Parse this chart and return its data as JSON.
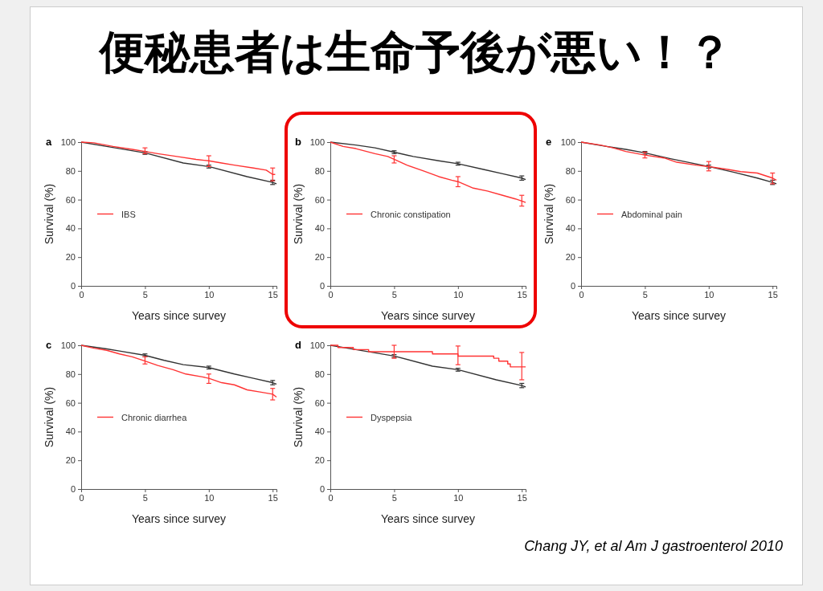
{
  "chart_data": [
    {
      "type": "other",
      "title": "便秘患者は生命予後が悪い！？",
      "annotations": [
        "Chang JY, et al Am J gastroenterol 2010"
      ]
    },
    {
      "type": "line",
      "title": "a",
      "xlabel": "Years since survey",
      "ylabel": "Survival (%)",
      "xlim": [
        0,
        15.3
      ],
      "xticks": [
        0,
        5,
        10,
        15
      ],
      "ylim": [
        0,
        100
      ],
      "yticks": [
        0,
        20,
        40,
        60,
        80,
        100
      ],
      "legend": "left",
      "series": [
        {
          "color": "#333333",
          "x": [
            0,
            2,
            5,
            8,
            10,
            13,
            15,
            15.3
          ],
          "values": [
            100,
            97,
            92.5,
            85.5,
            83,
            76,
            72,
            71
          ],
          "errors": [
            null,
            null,
            [
              91.5,
              93.5
            ],
            null,
            [
              82,
              84
            ],
            null,
            [
              70.5,
              73.5
            ],
            null
          ]
        },
        {
          "name": "IBS",
          "color": "#ff3333",
          "x": [
            0,
            1,
            2.5,
            4,
            5,
            6,
            7.5,
            9,
            10,
            11,
            12,
            13.5,
            14.5,
            15,
            15.2
          ],
          "values": [
            100,
            99.5,
            97,
            95,
            93.5,
            92,
            90,
            88,
            87,
            85.5,
            84,
            82,
            80.5,
            77.5,
            77.5
          ],
          "errors": [
            null,
            null,
            null,
            null,
            [
              92,
              96
            ],
            null,
            null,
            null,
            [
              83,
              90.5
            ],
            null,
            null,
            null,
            null,
            [
              73,
              82
            ],
            null
          ]
        }
      ]
    },
    {
      "type": "line",
      "title": "b",
      "xlabel": "Years since survey",
      "ylabel": "Survival (%)",
      "xlim": [
        0,
        15.3
      ],
      "xticks": [
        0,
        5,
        10,
        15
      ],
      "ylim": [
        0,
        100
      ],
      "yticks": [
        0,
        20,
        40,
        60,
        80,
        100
      ],
      "legend": "left",
      "series": [
        {
          "color": "#333333",
          "x": [
            0,
            2,
            3.5,
            5,
            6.5,
            8.5,
            10,
            12,
            13.5,
            15,
            15.3
          ],
          "values": [
            100,
            98,
            96,
            93,
            90,
            87,
            85,
            81,
            78,
            75,
            74
          ],
          "errors": [
            null,
            null,
            null,
            [
              92,
              94
            ],
            null,
            null,
            [
              84,
              86
            ],
            null,
            null,
            [
              73.5,
              76.5
            ],
            null
          ]
        },
        {
          "name": "Chronic constipation",
          "color": "#ff3333",
          "x": [
            0,
            1,
            2,
            3.5,
            4.5,
            5,
            6,
            7.3,
            8.5,
            9.5,
            10,
            11.2,
            12.3,
            13.5,
            14.5,
            15,
            15.3
          ],
          "values": [
            100,
            97,
            95.5,
            92,
            90,
            88,
            84,
            80,
            76,
            73.5,
            72.5,
            68,
            66,
            63,
            60.5,
            59,
            58
          ],
          "errors": [
            null,
            null,
            null,
            null,
            null,
            [
              85.5,
              90.5
            ],
            null,
            null,
            null,
            null,
            [
              69,
              76
            ],
            null,
            null,
            null,
            null,
            [
              55.5,
              63
            ],
            null
          ]
        }
      ]
    },
    {
      "type": "line",
      "title": "e",
      "xlabel": "Years since survey",
      "ylabel": "Survival (%)",
      "xlim": [
        0,
        15.3
      ],
      "xticks": [
        0,
        5,
        10,
        15
      ],
      "ylim": [
        0,
        100
      ],
      "yticks": [
        0,
        20,
        40,
        60,
        80,
        100
      ],
      "legend": "left",
      "series": [
        {
          "color": "#333333",
          "x": [
            0,
            2,
            3.5,
            5,
            7,
            10,
            12,
            13.8,
            15,
            15.3
          ],
          "values": [
            100,
            97,
            95,
            92.5,
            88.5,
            83,
            79,
            75,
            72,
            71
          ],
          "errors": [
            null,
            null,
            null,
            [
              91.5,
              93.5
            ],
            null,
            [
              82,
              84
            ],
            null,
            null,
            [
              70.5,
              73.5
            ],
            null
          ]
        },
        {
          "name": "Abdominal pain",
          "color": "#ff3333",
          "x": [
            0,
            1.5,
            2.5,
            3.5,
            5,
            6.5,
            7.5,
            9,
            10,
            11.5,
            12.5,
            13.8,
            15,
            15.3
          ],
          "values": [
            100,
            98,
            96,
            93.5,
            91,
            89,
            86,
            84,
            83,
            81,
            79.5,
            78.5,
            75,
            73.5
          ],
          "errors": [
            null,
            null,
            null,
            null,
            [
              89,
              93
            ],
            null,
            null,
            null,
            [
              80,
              86.5
            ],
            null,
            null,
            null,
            [
              71,
              78.5
            ],
            null
          ]
        }
      ]
    },
    {
      "type": "line",
      "title": "c",
      "xlabel": "Years since survey",
      "ylabel": "Survival (%)",
      "xlim": [
        0,
        15.3
      ],
      "xticks": [
        0,
        5,
        10,
        15
      ],
      "ylim": [
        0,
        100
      ],
      "yticks": [
        0,
        20,
        40,
        60,
        80,
        100
      ],
      "legend": "left",
      "series": [
        {
          "color": "#333333",
          "x": [
            0,
            2,
            3,
            5,
            6.5,
            8,
            10,
            12,
            13.5,
            15,
            15.3
          ],
          "values": [
            100,
            97.5,
            96,
            93,
            89.5,
            86.5,
            84.5,
            80,
            77,
            74,
            73
          ],
          "errors": [
            null,
            null,
            null,
            [
              92,
              94
            ],
            null,
            null,
            [
              83.5,
              85.5
            ],
            null,
            null,
            [
              72.5,
              75.5
            ],
            null
          ]
        },
        {
          "name": "Chronic diarrhea",
          "color": "#ff3333",
          "x": [
            0,
            1,
            2,
            3,
            4,
            5,
            6,
            7.2,
            8.2,
            9.5,
            10,
            11,
            12,
            13,
            14,
            15,
            15.3
          ],
          "values": [
            100,
            98,
            96.5,
            94,
            92,
            89,
            86,
            83,
            80,
            78,
            77,
            74,
            72.5,
            69,
            67.5,
            66,
            64
          ],
          "errors": [
            null,
            null,
            null,
            null,
            null,
            [
              87,
              92
            ],
            null,
            null,
            null,
            null,
            [
              73.5,
              80
            ],
            null,
            null,
            null,
            null,
            [
              62,
              70
            ],
            null
          ]
        }
      ]
    },
    {
      "type": "line",
      "title": "d",
      "xlabel": "Years since survey",
      "ylabel": "Survival (%)",
      "xlim": [
        0,
        15.3
      ],
      "xticks": [
        0,
        5,
        10,
        15
      ],
      "ylim": [
        0,
        100
      ],
      "yticks": [
        0,
        20,
        40,
        60,
        80,
        100
      ],
      "legend": "left",
      "series": [
        {
          "color": "#333333",
          "x": [
            0,
            2,
            5,
            8,
            10,
            13,
            15,
            15.3
          ],
          "values": [
            100,
            97,
            92.5,
            85.5,
            83,
            76,
            72,
            71
          ],
          "errors": [
            null,
            null,
            [
              91.5,
              93.5
            ],
            null,
            [
              82,
              84
            ],
            null,
            [
              70.5,
              73.5
            ],
            null
          ]
        },
        {
          "name": "Dyspepsia",
          "type": "step",
          "color": "#ff3333",
          "x": [
            0,
            0.6,
            1.8,
            3,
            5,
            8,
            10,
            12.8,
            13.2,
            13.9,
            14.1,
            15,
            15.3
          ],
          "values": [
            100,
            98.5,
            97,
            95.5,
            95.5,
            94,
            92.5,
            91,
            89,
            87,
            85,
            85,
            85
          ],
          "errors": [
            null,
            null,
            null,
            null,
            [
              91,
              100
            ],
            null,
            [
              86.5,
              99.5
            ],
            null,
            null,
            null,
            null,
            [
              76,
              95
            ],
            null
          ]
        }
      ]
    }
  ]
}
